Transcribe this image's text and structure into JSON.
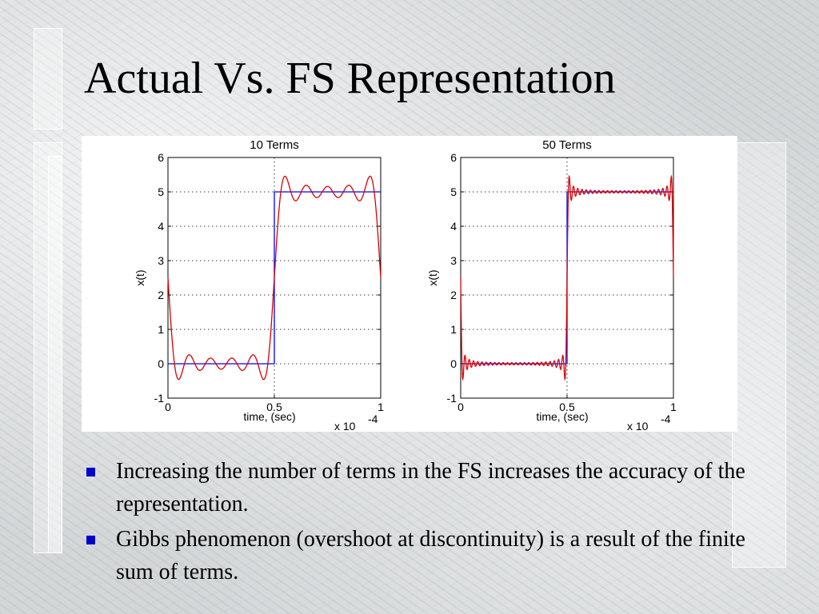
{
  "slide": {
    "title": "Actual Vs. FS Representation",
    "bullets": [
      "Increasing the number of terms in the FS increases the accuracy of the representation.",
      "Gibbs phenomenon (overshoot at discontinuity) is a result of the finite sum of terms."
    ],
    "bullet_color": "#0000cc"
  },
  "chart_data": [
    {
      "type": "line",
      "title": "10 Terms",
      "xlabel": "time, (sec)",
      "ylabel": "x(t)",
      "x_multiplier": "x 10",
      "x_exponent": "-4",
      "xlim": [
        0,
        1
      ],
      "ylim": [
        -1,
        6
      ],
      "xticks": [
        "0",
        "0.5",
        "1"
      ],
      "yticks": [
        "-1",
        "0",
        "1",
        "2",
        "3",
        "4",
        "5",
        "6"
      ],
      "grid": true,
      "terms": 10,
      "series": [
        {
          "kind": "actual",
          "color": "#0000ff",
          "x": [
            0,
            0.5,
            0.5,
            1
          ],
          "y": [
            0,
            0,
            5,
            5
          ]
        },
        {
          "kind": "fs",
          "color": "#dd0000",
          "harmonics": 10,
          "amplitude": 5,
          "period": 1
        }
      ]
    },
    {
      "type": "line",
      "title": "50 Terms",
      "xlabel": "time, (sec)",
      "ylabel": "x(t)",
      "x_multiplier": "x 10",
      "x_exponent": "-4",
      "xlim": [
        0,
        1
      ],
      "ylim": [
        -1,
        6
      ],
      "xticks": [
        "0",
        "0.5",
        "1"
      ],
      "yticks": [
        "-1",
        "0",
        "1",
        "2",
        "3",
        "4",
        "5",
        "6"
      ],
      "grid": true,
      "terms": 50,
      "series": [
        {
          "kind": "actual",
          "color": "#0000ff",
          "x": [
            0,
            0.5,
            0.5,
            1
          ],
          "y": [
            0,
            0,
            5,
            5
          ]
        },
        {
          "kind": "fs",
          "color": "#dd0000",
          "harmonics": 50,
          "amplitude": 5,
          "period": 1
        }
      ]
    }
  ]
}
